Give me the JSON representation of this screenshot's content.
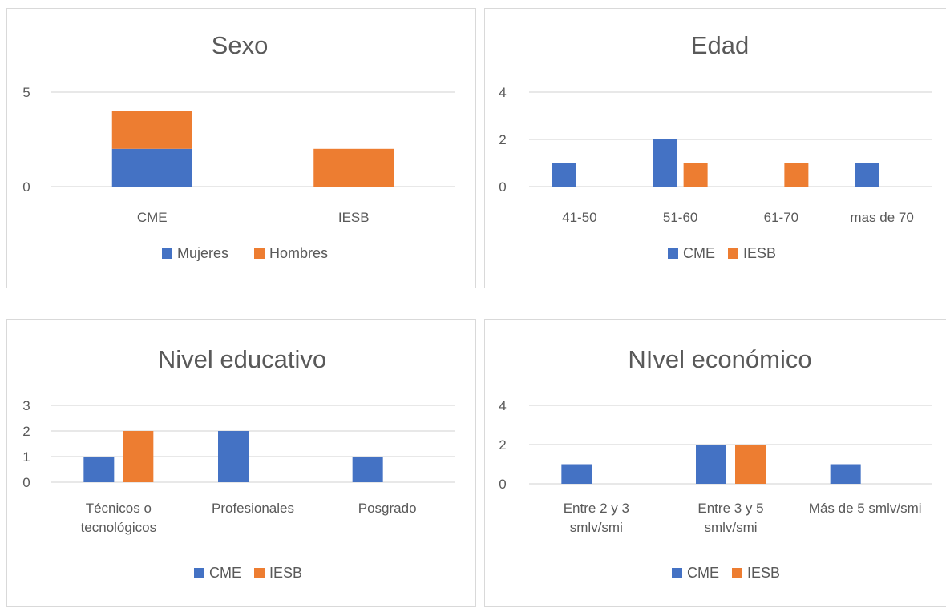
{
  "chart_data": [
    {
      "type": "bar",
      "stacked": true,
      "title": "Sexo",
      "categories": [
        "CME",
        "IESB"
      ],
      "series": [
        {
          "name": "Mujeres",
          "values": [
            2,
            0
          ],
          "color": "#4472C4"
        },
        {
          "name": "Hombres",
          "values": [
            2,
            2
          ],
          "color": "#ED7D31"
        }
      ],
      "ylim": [
        0,
        5
      ],
      "yticks": [
        "0",
        "5"
      ],
      "grid": true,
      "legend": "bottom"
    },
    {
      "type": "bar",
      "title": "Edad",
      "categories": [
        "41-50",
        "51-60",
        "61-70",
        "mas de 70"
      ],
      "series": [
        {
          "name": "CME",
          "values": [
            1,
            2,
            0,
            1
          ],
          "color": "#4472C4"
        },
        {
          "name": "IESB",
          "values": [
            0,
            1,
            1,
            0
          ],
          "color": "#ED7D31"
        }
      ],
      "ylim": [
        0,
        4
      ],
      "yticks": [
        "0",
        "2",
        "4"
      ],
      "grid": true,
      "legend": "bottom"
    },
    {
      "type": "bar",
      "title": "Nivel educativo",
      "categories": [
        [
          "Técnicos o",
          "tecnológicos"
        ],
        [
          "Profesionales"
        ],
        [
          "Posgrado"
        ]
      ],
      "series": [
        {
          "name": "CME",
          "values": [
            1,
            2,
            1
          ],
          "color": "#4472C4"
        },
        {
          "name": "IESB",
          "values": [
            2,
            0,
            0
          ],
          "color": "#ED7D31"
        }
      ],
      "ylim": [
        0,
        3
      ],
      "yticks": [
        "0",
        "1",
        "2",
        "3"
      ],
      "grid": true,
      "legend": "bottom"
    },
    {
      "type": "bar",
      "title": "NIvel económico",
      "categories": [
        [
          "Entre 2 y 3",
          "smlv/smi"
        ],
        [
          "Entre 3 y 5",
          "smlv/smi"
        ],
        [
          "Más de 5 smlv/smi"
        ]
      ],
      "series": [
        {
          "name": "CME",
          "values": [
            1,
            2,
            1
          ],
          "color": "#4472C4"
        },
        {
          "name": "IESB",
          "values": [
            0,
            2,
            0
          ],
          "color": "#ED7D31"
        }
      ],
      "ylim": [
        0,
        4
      ],
      "yticks": [
        "0",
        "2",
        "4"
      ],
      "grid": true,
      "legend": "bottom"
    }
  ]
}
